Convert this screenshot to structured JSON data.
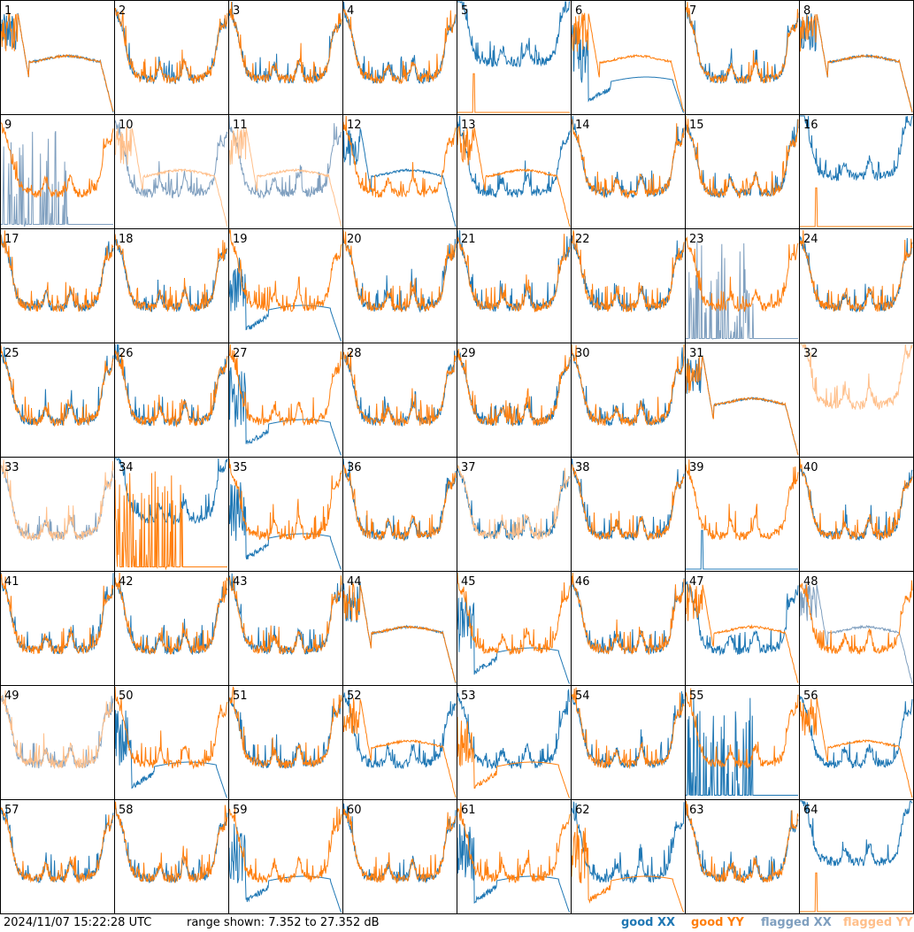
{
  "chart_data": {
    "type": "line",
    "panels_count": 64,
    "grid": "8x8",
    "ylim": [
      7.352,
      27.352
    ],
    "series_legend": [
      {
        "key": "good_xx",
        "name": "good XX",
        "color": "#1f77b4"
      },
      {
        "key": "good_yy",
        "name": "good YY",
        "color": "#ff7f0e"
      },
      {
        "key": "flagged_xx",
        "name": "flagged XX",
        "color": "#7f9fbf"
      },
      {
        "key": "flagged_yy",
        "name": "flagged YY",
        "color": "#ffbf8a"
      }
    ],
    "panels": [
      {
        "label": "1",
        "xx": "trough",
        "yy": "trough"
      },
      {
        "label": "2",
        "xx": "normal",
        "yy": "normal"
      },
      {
        "label": "3",
        "xx": "normal",
        "yy": "normal"
      },
      {
        "label": "4",
        "xx": "normal",
        "yy": "normal"
      },
      {
        "label": "5",
        "xx": "high",
        "yy": "spike"
      },
      {
        "label": "6",
        "xx": "dip",
        "yy": "trough"
      },
      {
        "label": "7",
        "xx": "normal",
        "yy": "normal"
      },
      {
        "label": "8",
        "xx": "trough",
        "yy": "trough"
      },
      {
        "label": "9",
        "xx": "flagged_spikes",
        "yy": "normal"
      },
      {
        "label": "10",
        "xx": "flagged_normal",
        "yy": "flagged_trough"
      },
      {
        "label": "11",
        "xx": "flagged_normal",
        "yy": "flagged_trough"
      },
      {
        "label": "12",
        "xx": "trough",
        "yy": "normal"
      },
      {
        "label": "13",
        "xx": "normal",
        "yy": "trough"
      },
      {
        "label": "14",
        "xx": "normal",
        "yy": "normal"
      },
      {
        "label": "15",
        "xx": "normal",
        "yy": "normal"
      },
      {
        "label": "16",
        "xx": "high",
        "yy": "spike"
      },
      {
        "label": "17",
        "xx": "normal",
        "yy": "normal"
      },
      {
        "label": "18",
        "xx": "normal",
        "yy": "normal"
      },
      {
        "label": "19",
        "xx": "dip",
        "yy": "normal"
      },
      {
        "label": "20",
        "xx": "normal",
        "yy": "normal"
      },
      {
        "label": "21",
        "xx": "normal",
        "yy": "normal"
      },
      {
        "label": "22",
        "xx": "normal",
        "yy": "normal"
      },
      {
        "label": "23",
        "xx": "flagged_spikes",
        "yy": "normal"
      },
      {
        "label": "24",
        "xx": "normal",
        "yy": "normal"
      },
      {
        "label": "25",
        "xx": "normal",
        "yy": "normal"
      },
      {
        "label": "26",
        "xx": "normal",
        "yy": "normal"
      },
      {
        "label": "27",
        "xx": "dip",
        "yy": "normal"
      },
      {
        "label": "28",
        "xx": "normal",
        "yy": "normal"
      },
      {
        "label": "29",
        "xx": "normal",
        "yy": "normal"
      },
      {
        "label": "30",
        "xx": "normal",
        "yy": "normal"
      },
      {
        "label": "31",
        "xx": "trough",
        "yy": "trough"
      },
      {
        "label": "32",
        "xx": "none",
        "yy": "flagged_high"
      },
      {
        "label": "33",
        "xx": "flagged_normal",
        "yy": "flagged_normal"
      },
      {
        "label": "34",
        "xx": "high",
        "yy": "spikes"
      },
      {
        "label": "35",
        "xx": "dip",
        "yy": "normal"
      },
      {
        "label": "36",
        "xx": "normal",
        "yy": "normal"
      },
      {
        "label": "37",
        "xx": "normal",
        "yy": "flagged_normal"
      },
      {
        "label": "38",
        "xx": "normal",
        "yy": "normal"
      },
      {
        "label": "39",
        "xx": "spike",
        "yy": "normal"
      },
      {
        "label": "40",
        "xx": "normal",
        "yy": "normal"
      },
      {
        "label": "41",
        "xx": "normal",
        "yy": "normal"
      },
      {
        "label": "42",
        "xx": "normal",
        "yy": "normal"
      },
      {
        "label": "43",
        "xx": "normal",
        "yy": "normal"
      },
      {
        "label": "44",
        "xx": "trough",
        "yy": "trough"
      },
      {
        "label": "45",
        "xx": "dip",
        "yy": "normal"
      },
      {
        "label": "46",
        "xx": "normal",
        "yy": "normal"
      },
      {
        "label": "47",
        "xx": "normal",
        "yy": "trough"
      },
      {
        "label": "48",
        "xx": "flagged_trough",
        "yy": "normal"
      },
      {
        "label": "49",
        "xx": "flagged_normal",
        "yy": "flagged_normal"
      },
      {
        "label": "50",
        "xx": "dip",
        "yy": "normal"
      },
      {
        "label": "51",
        "xx": "normal",
        "yy": "normal"
      },
      {
        "label": "52",
        "xx": "normal",
        "yy": "trough"
      },
      {
        "label": "53",
        "xx": "normal",
        "yy": "dip"
      },
      {
        "label": "54",
        "xx": "normal",
        "yy": "normal"
      },
      {
        "label": "55",
        "xx": "spikes",
        "yy": "normal"
      },
      {
        "label": "56",
        "xx": "normal",
        "yy": "trough"
      },
      {
        "label": "57",
        "xx": "normal",
        "yy": "normal"
      },
      {
        "label": "58",
        "xx": "normal",
        "yy": "normal"
      },
      {
        "label": "59",
        "xx": "dip",
        "yy": "normal"
      },
      {
        "label": "60",
        "xx": "normal",
        "yy": "normal"
      },
      {
        "label": "61",
        "xx": "dip",
        "yy": "normal"
      },
      {
        "label": "62",
        "xx": "normal",
        "yy": "dip"
      },
      {
        "label": "63",
        "xx": "normal",
        "yy": "normal"
      },
      {
        "label": "64",
        "xx": "high",
        "yy": "spike"
      }
    ]
  },
  "footer": {
    "timestamp": "2024/11/07 15:22:28 UTC",
    "range_text": "range shown: 7.352 to 27.352 dB"
  }
}
